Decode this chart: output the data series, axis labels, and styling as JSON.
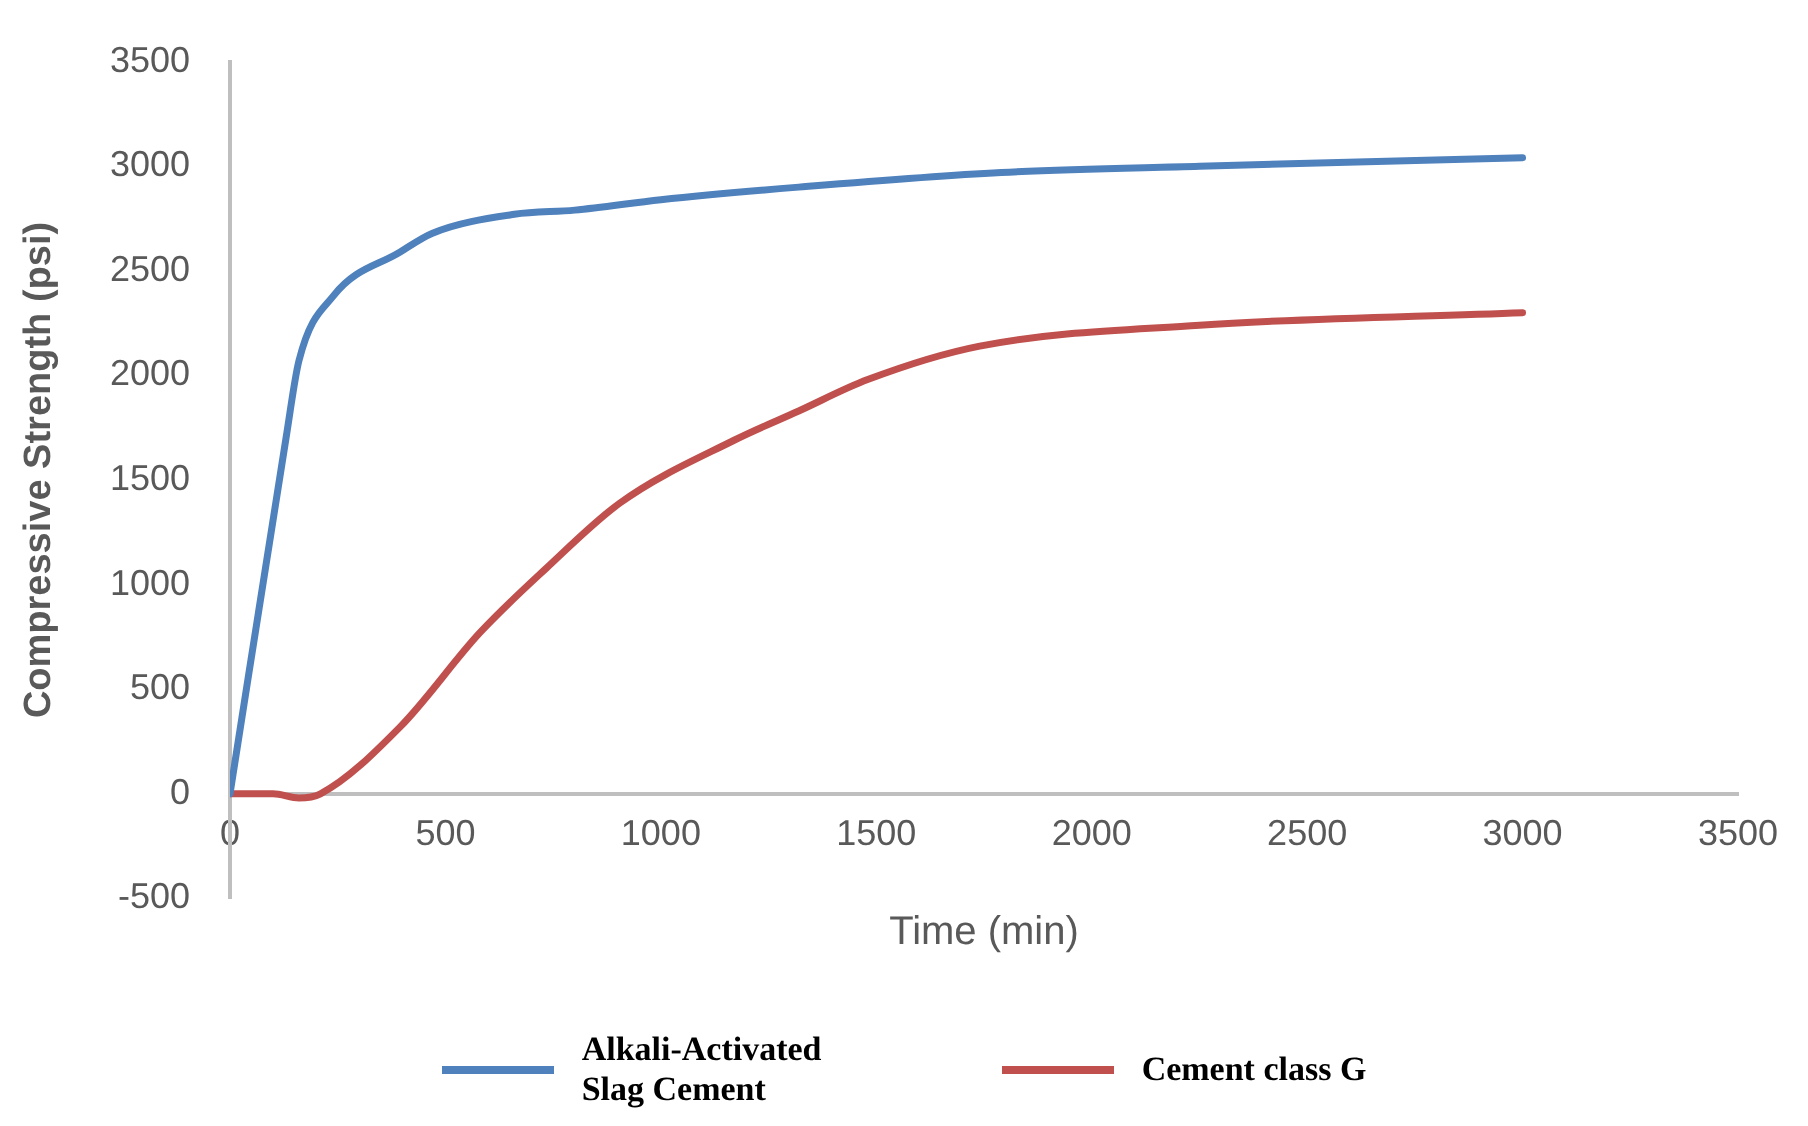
{
  "chart_data": {
    "type": "line",
    "xlabel": "Time (min)",
    "ylabel": "Compressive Strength (psi)",
    "xlim": [
      0,
      3500
    ],
    "xticks": [
      0,
      500,
      1000,
      1500,
      2000,
      2500,
      3000,
      3500
    ],
    "ylim": [
      -500,
      3500
    ],
    "yticks": [
      -500,
      0,
      500,
      1000,
      1500,
      2000,
      2500,
      3000,
      3500
    ],
    "grid": false,
    "legend": "bottom",
    "marker": "none",
    "line_style": "solid",
    "series": [
      {
        "name": "Alkali-Activated Slag Cement",
        "color": "#4f81bd",
        "x": [
          0,
          130,
          160,
          240,
          395,
          470,
          660,
          800,
          1000,
          1320,
          1790,
          2250,
          3000
        ],
        "values": [
          0,
          1700,
          2070,
          2380,
          2590,
          2680,
          2770,
          2790,
          2840,
          2900,
          2970,
          3000,
          3040
        ]
      },
      {
        "name": "Cement class G",
        "color": "#c0504d",
        "x": [
          0,
          100,
          160,
          210,
          395,
          580,
          735,
          905,
          1170,
          1320,
          1480,
          1740,
          2250,
          3000
        ],
        "values": [
          0,
          0,
          -20,
          0,
          320,
          770,
          1080,
          1390,
          1690,
          1830,
          1980,
          2140,
          2240,
          2300
        ]
      }
    ]
  }
}
